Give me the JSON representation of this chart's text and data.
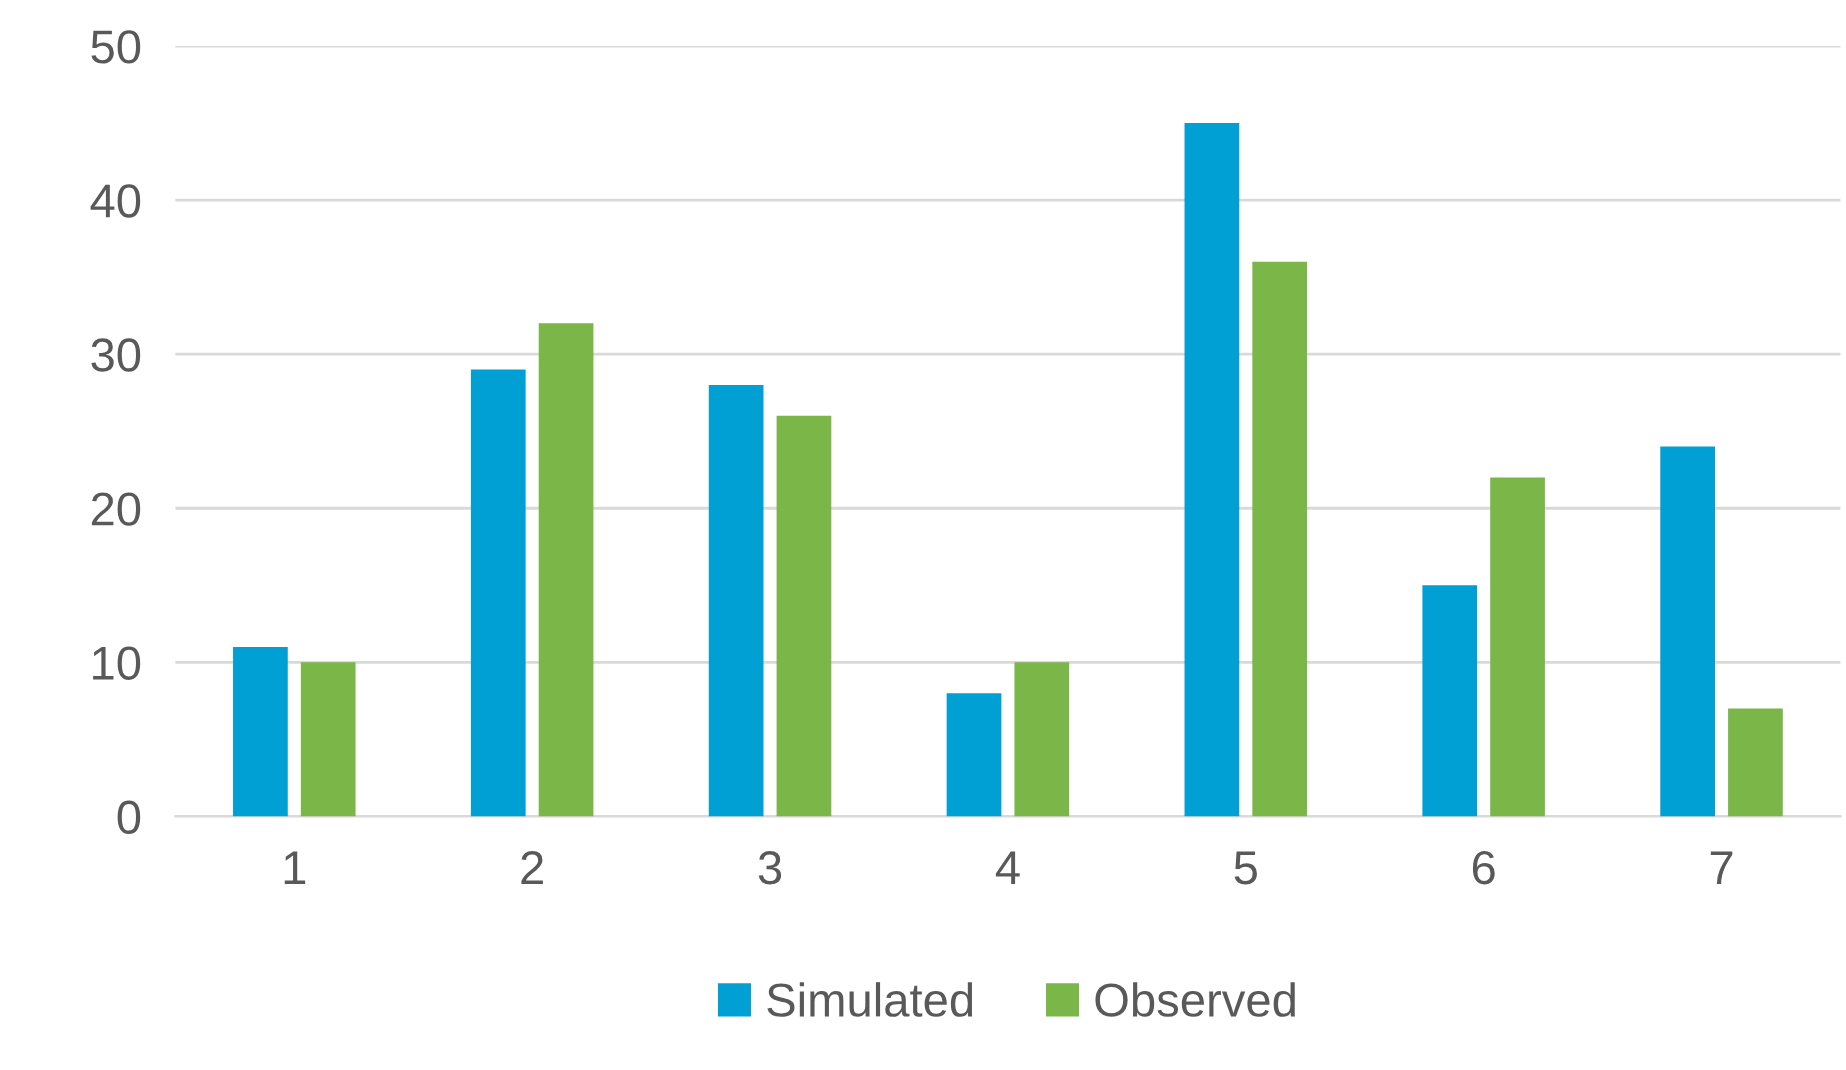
{
  "chart_data": {
    "type": "bar",
    "categories": [
      "1",
      "2",
      "3",
      "4",
      "5",
      "6",
      "7"
    ],
    "series": [
      {
        "name": "Simulated",
        "color": "#009fd4",
        "values": [
          11,
          29,
          28,
          8,
          45,
          15,
          24
        ]
      },
      {
        "name": "Observed",
        "color": "#7ab648",
        "values": [
          10,
          32,
          26,
          10,
          36,
          22,
          7
        ]
      }
    ],
    "ylim": [
      0,
      50
    ],
    "yticks": [
      0,
      10,
      20,
      30,
      40,
      50
    ],
    "grid": "y",
    "legend": "bottom"
  }
}
